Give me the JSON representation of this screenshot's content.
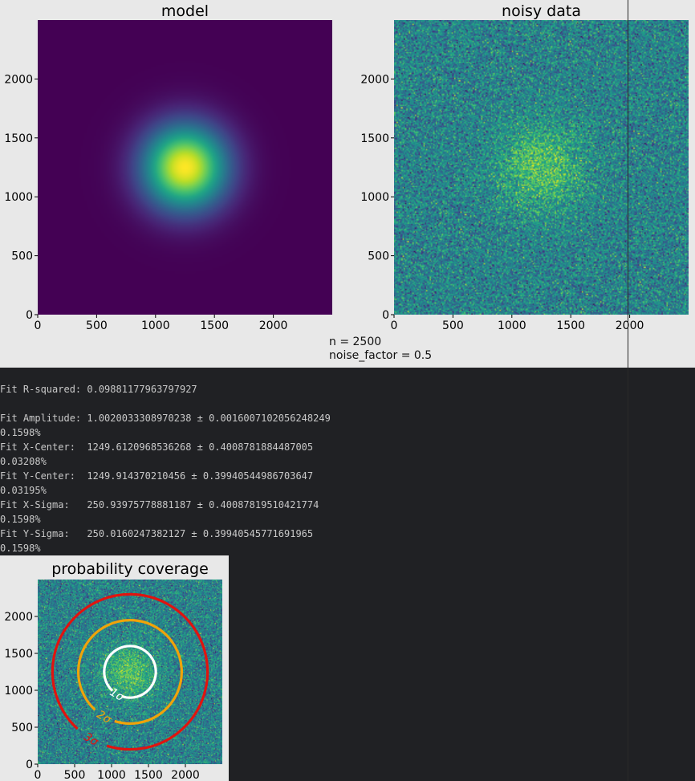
{
  "figure_top": {
    "annotation_n": "n = 2500",
    "annotation_noise": "noise_factor = 0.5"
  },
  "chart_data": [
    {
      "type": "heatmap",
      "title": "model",
      "xlim": [
        0,
        2500
      ],
      "ylim": [
        0,
        2500
      ],
      "xticks": [
        0,
        500,
        1000,
        1500,
        2000
      ],
      "yticks": [
        0,
        500,
        1000,
        1500,
        2000
      ],
      "gaussian": {
        "amplitude": 1.0,
        "x_center": 1250,
        "y_center": 1250,
        "x_sigma": 250,
        "y_sigma": 250
      },
      "noise": 0,
      "colormap": "viridis"
    },
    {
      "type": "heatmap",
      "title": "noisy data",
      "xlim": [
        0,
        2500
      ],
      "ylim": [
        0,
        2500
      ],
      "xticks": [
        0,
        500,
        1000,
        1500,
        2000
      ],
      "yticks": [
        0,
        500,
        1000,
        1500,
        2000
      ],
      "gaussian": {
        "amplitude": 1.0,
        "x_center": 1250,
        "y_center": 1250,
        "x_sigma": 250,
        "y_sigma": 250
      },
      "noise": 0.5,
      "colormap": "viridis"
    },
    {
      "type": "heatmap",
      "title": "probability coverage",
      "xlim": [
        0,
        2500
      ],
      "ylim": [
        0,
        2500
      ],
      "xticks": [
        0,
        500,
        1000,
        1500,
        2000
      ],
      "yticks": [
        0,
        500,
        1000,
        1500,
        2000
      ],
      "gaussian": {
        "amplitude": 1.0,
        "x_center": 1250,
        "y_center": 1250,
        "x_sigma": 250,
        "y_sigma": 250
      },
      "noise": 0.5,
      "colormap": "viridis",
      "contours": [
        {
          "label": "1σ",
          "radius": 350,
          "color": "#ffffff"
        },
        {
          "label": "2σ",
          "radius": 700,
          "color": "#f0a30a"
        },
        {
          "label": "3σ",
          "radius": 1050,
          "color": "#e0140f"
        }
      ]
    }
  ],
  "console": {
    "lines": [
      "Fit R-squared: 0.09881177963797927",
      "",
      "Fit Amplitude: 1.0020033308970238 ± 0.0016007102056248249",
      "0.1598%",
      "Fit X-Center:  1249.6120968536268 ± 0.4008781884487005",
      "0.03208%",
      "Fit Y-Center:  1249.914370210456 ± 0.39940544986703647",
      "0.03195%",
      "Fit X-Sigma:   250.93975778881187 ± 0.40087819510421774",
      "0.1598%",
      "Fit Y-Sigma:   250.0160247382127 ± 0.39940545771691965",
      "0.1598%"
    ]
  },
  "colors": {
    "figure_bg": "#e8e8e8",
    "console_bg": "#202124",
    "console_text": "#c9c9c9"
  }
}
